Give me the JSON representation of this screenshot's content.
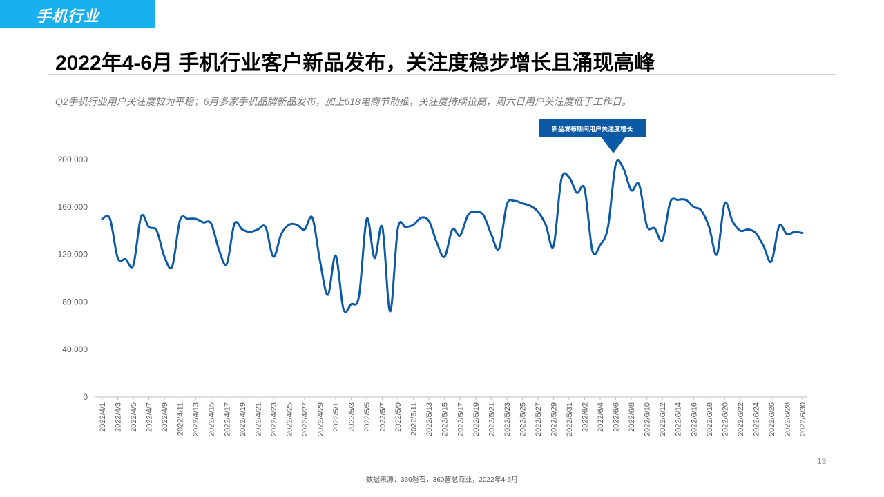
{
  "header": {
    "tag": "手机行业",
    "title": "2022年4-6月 手机行业客户新品发布，关注度稳步增长且涌现高峰",
    "subtitle": "Q2手机行业用户关注度较为平稳；6月多家手机品牌新品发布，加上618电商节助推，关注度持续拉高，周六日用户关注度低于工作日。"
  },
  "callout": "新品发布期间用户关注度增长",
  "page_number": "13",
  "source": "数据来源：360磐石，360智慧商业，2022年4-6月",
  "colors": {
    "line": "#0c5aa6",
    "tag": "#1ab0f0",
    "callout": "#0c5aa6"
  },
  "chart_data": {
    "type": "line",
    "title": "",
    "xlabel": "",
    "ylabel": "",
    "ylim": [
      0,
      200000
    ],
    "yticks": [
      0,
      40000,
      80000,
      120000,
      160000,
      200000
    ],
    "ytick_labels": [
      "0",
      "40,000",
      "80,000",
      "120,000",
      "160,000",
      "200,000"
    ],
    "grid": false,
    "x_tick_labels": [
      "2022/4/1",
      "2022/4/3",
      "2022/4/5",
      "2022/4/7",
      "2022/4/9",
      "2022/4/11",
      "2022/4/13",
      "2022/4/15",
      "2022/4/17",
      "2022/4/19",
      "2022/4/21",
      "2022/4/23",
      "2022/4/25",
      "2022/4/27",
      "2022/4/29",
      "2022/5/1",
      "2022/5/3",
      "2022/5/5",
      "2022/5/7",
      "2022/5/9",
      "2022/5/11",
      "2022/5/13",
      "2022/5/15",
      "2022/5/17",
      "2022/5/19",
      "2022/5/21",
      "2022/5/23",
      "2022/5/25",
      "2022/5/27",
      "2022/5/29",
      "2022/5/31",
      "2022/6/2",
      "2022/6/4",
      "2022/6/6",
      "2022/6/8",
      "2022/6/10",
      "2022/6/12",
      "2022/6/14",
      "2022/6/16",
      "2022/6/18",
      "2022/6/20",
      "2022/6/22",
      "2022/6/24",
      "2022/6/26",
      "2022/6/28",
      "2022/6/30"
    ],
    "series": [
      {
        "values": [
          150000,
          150000,
          117000,
          116000,
          111000,
          152000,
          143000,
          140000,
          118000,
          110000,
          149000,
          150000,
          150000,
          147000,
          146000,
          124000,
          112000,
          146000,
          141000,
          139000,
          141000,
          143000,
          118000,
          137000,
          145000,
          145000,
          141000,
          151000,
          114000,
          86000,
          119000,
          74000,
          78000,
          85000,
          150000,
          117000,
          143000,
          72000,
          142000,
          143000,
          145000,
          151000,
          148000,
          130000,
          118000,
          141000,
          136000,
          153000,
          156000,
          153000,
          137000,
          125000,
          162000,
          165000,
          163000,
          161000,
          156000,
          145000,
          127000,
          183000,
          185000,
          172000,
          175000,
          123000,
          128000,
          143000,
          196000,
          192000,
          174000,
          179000,
          144000,
          142000,
          132000,
          164000,
          166000,
          166000,
          160000,
          157000,
          143000,
          120000,
          163000,
          148000,
          140000,
          141000,
          138000,
          127000,
          114000,
          144000,
          137000,
          139000,
          138000
        ]
      }
    ]
  }
}
